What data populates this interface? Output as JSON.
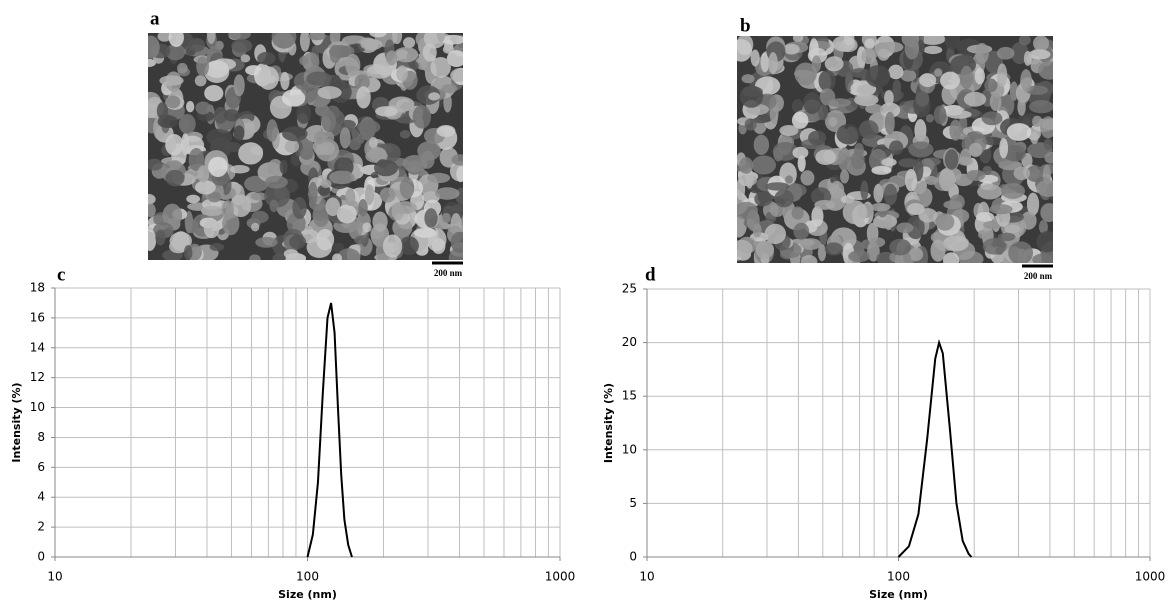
{
  "panels": [
    {
      "label": "a",
      "scale_bar": "200 nm"
    },
    {
      "label": "b",
      "scale_bar": "200 nm"
    }
  ],
  "chart_data": [
    {
      "type": "line",
      "label": "c",
      "x_label": "Size (nm)",
      "y_label": "Intensity (%)",
      "color": "#000000",
      "x": [
        100,
        105,
        110,
        115,
        120,
        124,
        128,
        132,
        136,
        140,
        145,
        150
      ],
      "values": [
        0,
        1.5,
        5,
        11,
        16,
        17,
        15,
        10,
        5.5,
        2.5,
        0.8,
        0
      ],
      "xlim": [
        10,
        1000
      ],
      "xticks": [
        10,
        100,
        1000
      ],
      "log_x": true,
      "ylim": [
        0,
        18
      ],
      "yticks": [
        0,
        2,
        4,
        6,
        8,
        10,
        12,
        14,
        16,
        18
      ],
      "grid": true
    },
    {
      "type": "line",
      "label": "d",
      "x_label": "Size (nm)",
      "y_label": "Intensity (%)",
      "color": "#000000",
      "x": [
        100,
        110,
        120,
        130,
        140,
        145,
        150,
        160,
        170,
        180,
        190,
        195
      ],
      "values": [
        0,
        1,
        4,
        11,
        18.5,
        20,
        19,
        12,
        5,
        1.5,
        0.3,
        0
      ],
      "xlim": [
        10,
        1000
      ],
      "xticks": [
        10,
        100,
        1000
      ],
      "log_x": true,
      "ylim": [
        0,
        25
      ],
      "yticks": [
        0,
        5,
        10,
        15,
        20,
        25
      ],
      "grid": true
    }
  ]
}
